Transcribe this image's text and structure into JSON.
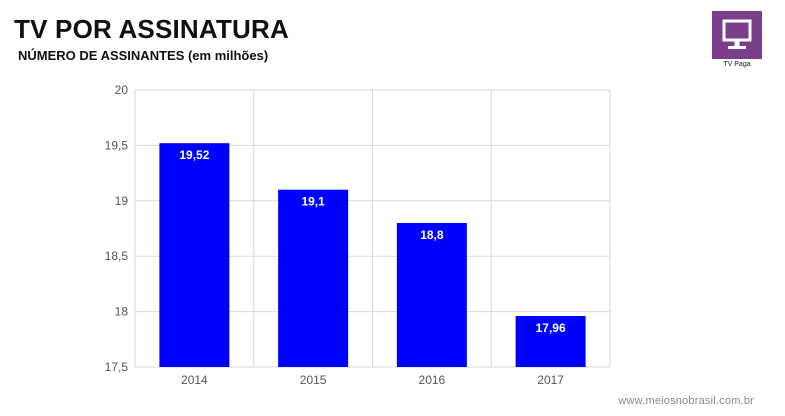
{
  "header": {
    "title": "TV POR ASSINATURA",
    "subtitle": "NÚMERO DE ASSINANTES  (em milhões)"
  },
  "badge": {
    "label": "TV Paga",
    "icon": "tv-monitor-icon",
    "color": "#7b3e8a"
  },
  "footer": {
    "watermark": "www.meiosnobrasil.com.br"
  },
  "chart_data": {
    "type": "bar",
    "categories": [
      "2014",
      "2015",
      "2016",
      "2017"
    ],
    "values": [
      19.52,
      19.1,
      18.8,
      17.96
    ],
    "data_labels": [
      "19,52",
      "19,1",
      "18,8",
      "17,96"
    ],
    "ylim": [
      17.5,
      20
    ],
    "yticks": [
      17.5,
      18,
      18.5,
      19,
      19.5,
      20
    ],
    "ytick_labels": [
      "17,5",
      "18",
      "18,5",
      "19",
      "19,5",
      "20"
    ],
    "grid": true,
    "legend": "none",
    "bar_color": "#0000ff",
    "label_color": "#ffffff",
    "grid_color": "#d9d9d9"
  }
}
